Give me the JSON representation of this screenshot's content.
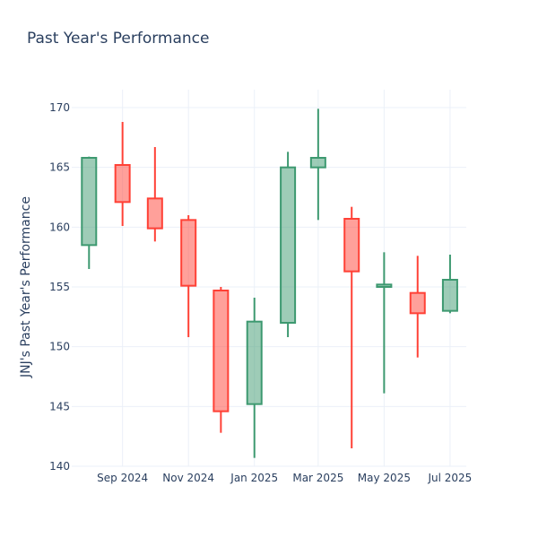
{
  "chart_data": {
    "type": "candlestick",
    "title": "Past Year's Performance",
    "xlabel": "",
    "ylabel": "JNJ's Past Year's Performance",
    "ylim": [
      140,
      171.5
    ],
    "yticks": [
      140,
      145,
      150,
      155,
      160,
      165,
      170
    ],
    "xticks": [
      {
        "date": "2024-09-01",
        "label": "Sep 2024"
      },
      {
        "date": "2024-11-01",
        "label": "Nov 2024"
      },
      {
        "date": "2025-01-01",
        "label": "Jan 2025"
      },
      {
        "date": "2025-03-01",
        "label": "Mar 2025"
      },
      {
        "date": "2025-05-01",
        "label": "May 2025"
      },
      {
        "date": "2025-07-01",
        "label": "Jul 2025"
      }
    ],
    "xrange": [
      "2024-07-16",
      "2025-07-16"
    ],
    "grid": true,
    "colors": {
      "increasing": "#3D9970",
      "decreasing": "#FF4136",
      "grid": "#EBF0F8",
      "text": "#2a3f5f"
    },
    "candles": [
      {
        "date": "2024-08-01",
        "open": 158.5,
        "high": 165.9,
        "low": 156.5,
        "close": 165.8
      },
      {
        "date": "2024-09-01",
        "open": 165.2,
        "high": 168.8,
        "low": 160.1,
        "close": 162.1
      },
      {
        "date": "2024-10-01",
        "open": 162.4,
        "high": 166.7,
        "low": 158.8,
        "close": 159.9
      },
      {
        "date": "2024-11-01",
        "open": 160.6,
        "high": 161.0,
        "low": 150.8,
        "close": 155.1
      },
      {
        "date": "2024-12-01",
        "open": 154.7,
        "high": 155.0,
        "low": 142.8,
        "close": 144.6
      },
      {
        "date": "2025-01-01",
        "open": 145.2,
        "high": 154.1,
        "low": 140.7,
        "close": 152.1
      },
      {
        "date": "2025-02-01",
        "open": 152.0,
        "high": 166.3,
        "low": 150.8,
        "close": 165.0
      },
      {
        "date": "2025-03-01",
        "open": 165.0,
        "high": 169.9,
        "low": 160.6,
        "close": 165.8
      },
      {
        "date": "2025-04-01",
        "open": 160.7,
        "high": 161.7,
        "low": 141.5,
        "close": 156.3
      },
      {
        "date": "2025-05-01",
        "open": 155.0,
        "high": 157.9,
        "low": 146.1,
        "close": 155.2
      },
      {
        "date": "2025-06-01",
        "open": 154.5,
        "high": 157.6,
        "low": 149.1,
        "close": 152.8
      },
      {
        "date": "2025-07-01",
        "open": 153.0,
        "high": 157.7,
        "low": 152.8,
        "close": 155.6
      }
    ]
  }
}
